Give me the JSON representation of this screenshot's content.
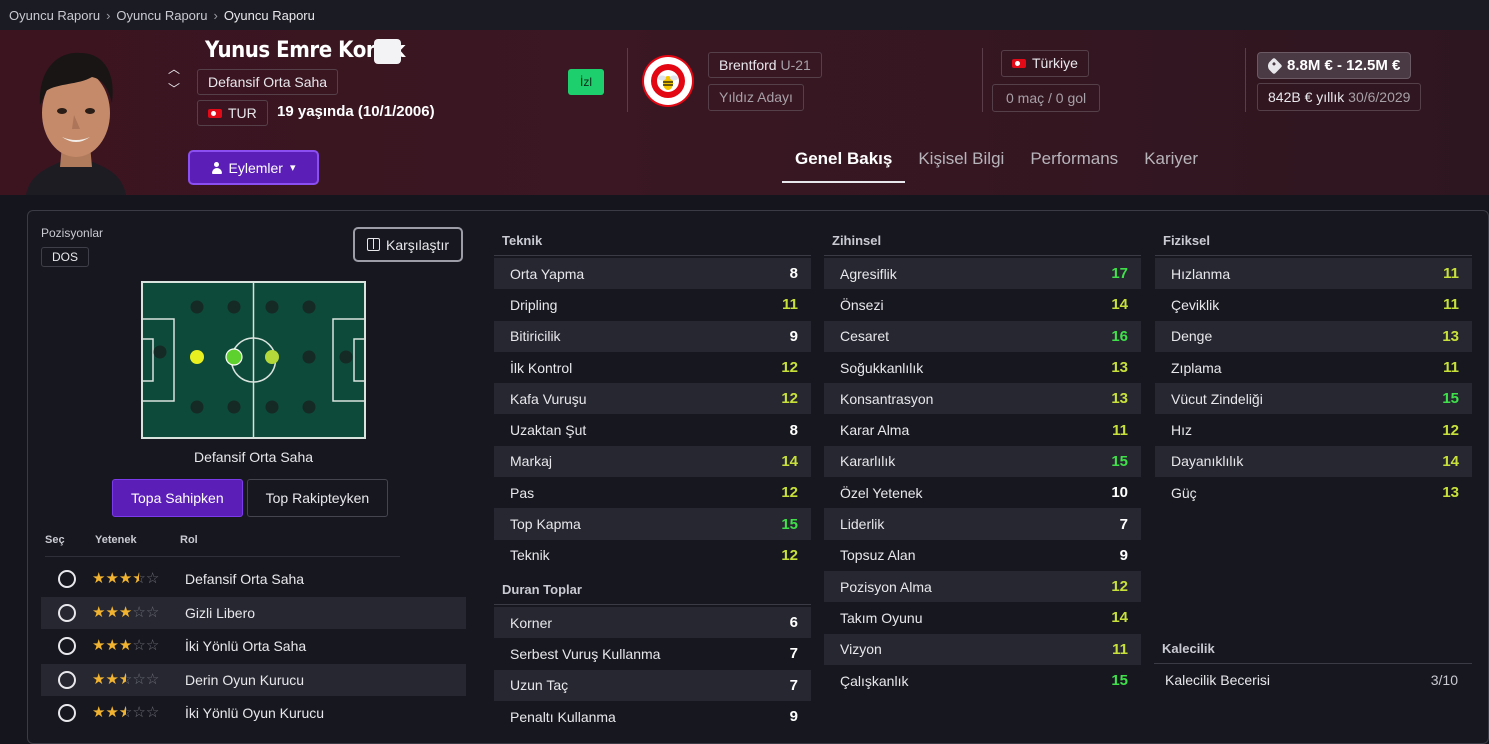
{
  "breadcrumb": [
    "Oyuncu Raporu",
    "Oyuncu Raporu",
    "Oyuncu Raporu"
  ],
  "player": {
    "name": "Yunus Emre Konak",
    "position": "Defansif Orta Saha",
    "nationality_code": "TUR",
    "age": "19 yaşında (10/1/2006)",
    "follow_label": "İzl"
  },
  "club": {
    "name": "Brentford",
    "team": "U-21",
    "status": "Yıldız Adayı"
  },
  "country": {
    "name": "Türkiye",
    "apps": "0 maç / 0 gol"
  },
  "contract": {
    "value": "8.8M € - 12.5M €",
    "wage": "842B € yıllık",
    "expiry": "30/6/2029"
  },
  "actions_label": "Eylemler",
  "tabs": [
    "Genel Bakış",
    "Kişisel Bilgi",
    "Performans",
    "Kariyer"
  ],
  "positions": {
    "label": "Pozisyonlar",
    "badge": "DOS",
    "caption": "Defansif Orta Saha",
    "compare_label": "Karşılaştır"
  },
  "phases": [
    "Topa Sahipken",
    "Top Rakipteyken"
  ],
  "roles_header": {
    "select": "Seç",
    "ability": "Yetenek",
    "role": "Rol"
  },
  "roles": [
    {
      "name": "Defansif Orta Saha",
      "stars": 3.5
    },
    {
      "name": "Gizli Libero",
      "stars": 3
    },
    {
      "name": "İki Yönlü Orta Saha",
      "stars": 3
    },
    {
      "name": "Derin Oyun Kurucu",
      "stars": 2.5
    },
    {
      "name": "İki Yönlü Oyun Kurucu",
      "stars": 2.5
    }
  ],
  "technical": {
    "title": "Teknik",
    "items": [
      {
        "name": "Orta Yapma",
        "value": 8
      },
      {
        "name": "Dripling",
        "value": 11
      },
      {
        "name": "Bitiricilik",
        "value": 9
      },
      {
        "name": "İlk Kontrol",
        "value": 12
      },
      {
        "name": "Kafa Vuruşu",
        "value": 12
      },
      {
        "name": "Uzaktan Şut",
        "value": 8
      },
      {
        "name": "Markaj",
        "value": 14
      },
      {
        "name": "Pas",
        "value": 12
      },
      {
        "name": "Top Kapma",
        "value": 15
      },
      {
        "name": "Teknik",
        "value": 12
      }
    ]
  },
  "set_pieces": {
    "title": "Duran Toplar",
    "items": [
      {
        "name": "Korner",
        "value": 6
      },
      {
        "name": "Serbest Vuruş Kullanma",
        "value": 7
      },
      {
        "name": "Uzun Taç",
        "value": 7
      },
      {
        "name": "Penaltı Kullanma",
        "value": 9
      }
    ]
  },
  "mental": {
    "title": "Zihinsel",
    "items": [
      {
        "name": "Agresiflik",
        "value": 17
      },
      {
        "name": "Önsezi",
        "value": 14
      },
      {
        "name": "Cesaret",
        "value": 16
      },
      {
        "name": "Soğukkanlılık",
        "value": 13
      },
      {
        "name": "Konsantrasyon",
        "value": 13
      },
      {
        "name": "Karar Alma",
        "value": 11
      },
      {
        "name": "Kararlılık",
        "value": 15
      },
      {
        "name": "Özel Yetenek",
        "value": 10
      },
      {
        "name": "Liderlik",
        "value": 7
      },
      {
        "name": "Topsuz Alan",
        "value": 9
      },
      {
        "name": "Pozisyon Alma",
        "value": 12
      },
      {
        "name": "Takım Oyunu",
        "value": 14
      },
      {
        "name": "Vizyon",
        "value": 11
      },
      {
        "name": "Çalışkanlık",
        "value": 15
      }
    ]
  },
  "physical": {
    "title": "Fiziksel",
    "items": [
      {
        "name": "Hızlanma",
        "value": 11
      },
      {
        "name": "Çeviklik",
        "value": 11
      },
      {
        "name": "Denge",
        "value": 13
      },
      {
        "name": "Zıplama",
        "value": 11
      },
      {
        "name": "Vücut Zindeliği",
        "value": 15
      },
      {
        "name": "Hız",
        "value": 12
      },
      {
        "name": "Dayanıklılık",
        "value": 14
      },
      {
        "name": "Güç",
        "value": 13
      }
    ]
  },
  "goalkeeping": {
    "title": "Kalecilik",
    "label": "Kalecilik Becerisi",
    "value": "3/10"
  },
  "colors": {
    "accent": "#5b1fb8",
    "attr_high": "#3fe04a",
    "attr_mid": "#c7e03a",
    "attr_low": "#ffffff",
    "star": "#f2b430"
  }
}
